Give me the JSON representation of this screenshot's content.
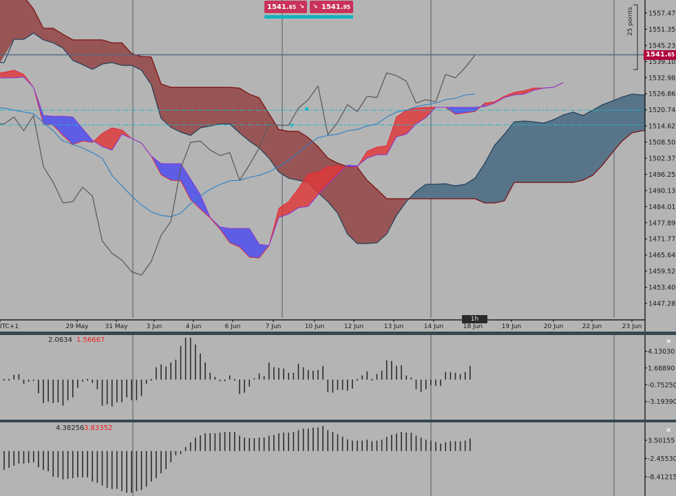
{
  "trade": {
    "sell_main": "1541.",
    "sell_sub": "65",
    "sell_icon": "arrow-down-right-icon",
    "buy_main": "1541.",
    "buy_sub": "95",
    "buy_icon": "arrow-down-right-icon"
  },
  "current_price": {
    "main": "1541.",
    "sub": "65",
    "color": "#b0003a"
  },
  "range_label": "25 points",
  "timeframe": "1h",
  "indicator1": {
    "value1": "2.0634",
    "value2": "1.56667",
    "close_icon": "close-icon"
  },
  "indicator2": {
    "value1": "4.38256",
    "value2": "3.83352",
    "close_icon": "close-icon"
  },
  "colors": {
    "background": "#b4b4b4",
    "kumo_bearish": "#985555",
    "kumo_bullish": "#587488",
    "band_red": "#e03838",
    "band_blue": "#4a4af0",
    "price_line": "#5c5c5c",
    "ma_line": "#2a7fc8",
    "level_line": "#1cb8c8"
  },
  "chart_data": [
    {
      "type": "line",
      "y_axis": {
        "ticks": [
          "1557.47",
          "1551.35",
          "1545.23",
          "1539.10",
          "1532.98",
          "1526.86",
          "1520.74",
          "1514.62",
          "1508.50",
          "1502.37",
          "1496.25",
          "1490.13",
          "1484.01",
          "1477.89",
          "1471.77",
          "1465.64",
          "1459.52",
          "1453.40",
          "1447.28"
        ],
        "range": [
          1443,
          1562
        ]
      },
      "x_axis": {
        "ticks": [
          "UTC+1",
          "29 May",
          "31 May",
          "3 Jun",
          "4 Jun",
          "6 Jun",
          "7 Jun",
          "10 Jun",
          "12 Jun",
          "13 Jun",
          "14 Jun",
          "18 Jun",
          "19 Jun",
          "20 Jun",
          "22 Jun",
          "23 Jun"
        ]
      },
      "current_price": 1541.65,
      "levels": [
        1520.6,
        1515.0
      ],
      "series": {
        "close": [
          1515.4,
          1518.0,
          1512.8,
          1518.6,
          1499.2,
          1493.2,
          1485.4,
          1485.9,
          1491.4,
          1488.0,
          1471.0,
          1466.3,
          1463.7,
          1459.3,
          1458.0,
          1463.2,
          1473.1,
          1478.4,
          1498.5,
          1508.4,
          1508.9,
          1505.5,
          1503.4,
          1504.5,
          1494.0,
          1499.8,
          1506.3,
          1515.4,
          1514.9,
          1514.9,
          1521.4,
          1524.6,
          1529.8,
          1511.3,
          1516.0,
          1522.7,
          1520.1,
          1525.9,
          1525.4,
          1534.8,
          1533.7,
          1531.6,
          1523.3,
          1524.6,
          1523.8,
          1534.2,
          1532.9,
          1536.8,
          1541.5
        ],
        "moving_average": [
          1521.4,
          1520.6,
          1519.9,
          1519.3,
          1515.9,
          1512.8,
          1508.9,
          1507.6,
          1506.3,
          1504.5,
          1502.4,
          1495.9,
          1491.9,
          1488.0,
          1484.6,
          1482.0,
          1480.7,
          1480.2,
          1481.5,
          1485.1,
          1488.0,
          1490.6,
          1492.4,
          1493.8,
          1494.0,
          1495.1,
          1495.9,
          1497.2,
          1499.2,
          1501.6,
          1504.5,
          1507.6,
          1510.2,
          1511.0,
          1511.5,
          1512.8,
          1513.3,
          1514.6,
          1515.4,
          1518.0,
          1519.9,
          1520.6,
          1521.9,
          1522.7,
          1523.3,
          1524.6,
          1525.1,
          1526.4,
          1526.7
        ],
        "senkou_a": [
          1538.7,
          1547.5,
          1547.5,
          1549.9,
          1547.3,
          1546.2,
          1544.2,
          1539.5,
          1537.9,
          1536.1,
          1538.1,
          1538.7,
          1537.6,
          1537.6,
          1535.8,
          1530.3,
          1517.5,
          1514.1,
          1512.3,
          1511.0,
          1513.9,
          1514.6,
          1515.4,
          1515.4,
          1512.0,
          1508.9,
          1506.3,
          1502.4,
          1497.2,
          1494.8,
          1494.0,
          1493.2,
          1489.3,
          1485.9,
          1481.5,
          1473.6,
          1470.0,
          1470.0,
          1470.3,
          1473.6,
          1480.7,
          1485.9,
          1489.8,
          1492.5,
          1492.5,
          1492.7,
          1491.9,
          1492.5,
          1494.8,
          1500.5,
          1507.3,
          1511.5,
          1516.2,
          1516.5,
          1516.2,
          1515.7,
          1517.0,
          1518.8,
          1519.9,
          1518.6,
          1520.6,
          1522.7,
          1524.1,
          1525.6,
          1526.7,
          1526.4,
          1526.4
        ],
        "senkou_b": [
          1567.6,
          1567.6,
          1563.7,
          1559.0,
          1551.7,
          1551.7,
          1549.4,
          1547.3,
          1547.3,
          1547.3,
          1547.3,
          1546.2,
          1546.2,
          1542.1,
          1541.0,
          1540.8,
          1530.6,
          1529.3,
          1529.3,
          1529.3,
          1529.3,
          1529.3,
          1529.3,
          1529.3,
          1529.0,
          1526.7,
          1525.3,
          1519.3,
          1513.3,
          1512.6,
          1512.6,
          1510.2,
          1506.8,
          1502.4,
          1500.5,
          1499.2,
          1499.0,
          1494.0,
          1490.6,
          1487.0,
          1487.0,
          1487.0,
          1487.0,
          1487.0,
          1487.0,
          1487.0,
          1487.0,
          1487.0,
          1487.0,
          1485.4,
          1485.4,
          1486.2,
          1493.2,
          1493.2,
          1493.2,
          1493.2,
          1493.2,
          1493.2,
          1493.2,
          1494.0,
          1495.9,
          1499.8,
          1504.5,
          1508.9,
          1512.0,
          1512.8,
          1512.8
        ],
        "band_line_purple": [
          1532.9,
          1532.9,
          1533.2,
          1529.3,
          1518.6,
          1518.3,
          1518.3,
          1518.0,
          1513.6,
          1509.2,
          1506.8,
          1505.5,
          1511.5,
          1509.9,
          1508.1,
          1503.2,
          1500.3,
          1500.3,
          1500.3,
          1494.5,
          1488.5,
          1479.9,
          1476.3,
          1475.7,
          1475.7,
          1475.7,
          1469.7,
          1469.2,
          1479.9,
          1481.2,
          1483.6,
          1484.1,
          1488.5,
          1492.4,
          1496.1,
          1499.8,
          1499.5,
          1502.4,
          1503.7,
          1503.7,
          1510.5,
          1511.5,
          1515.4,
          1517.8,
          1521.7,
          1521.7,
          1521.7,
          1521.7,
          1521.7,
          1522.0,
          1523.3,
          1525.4,
          1526.4,
          1526.7,
          1528.2,
          1529.0,
          1529.3,
          1531.1
        ],
        "band_line_red": [
          1534.8,
          1535.8,
          1534.2,
          1529.3,
          1515.4,
          1514.9,
          1511.0,
          1507.6,
          1508.9,
          1508.4,
          1511.8,
          1513.9,
          1513.1,
          1509.9,
          1508.1,
          1503.2,
          1496.1,
          1494.0,
          1493.8,
          1486.7,
          1483.1,
          1479.7,
          1475.5,
          1470.3,
          1468.7,
          1464.8,
          1464.5,
          1469.2,
          1483.3,
          1485.9,
          1490.9,
          1496.4,
          1497.2,
          1499.2,
          1499.5,
          1499.0,
          1499.0,
          1505.0,
          1506.6,
          1507.1,
          1518.0,
          1520.6,
          1521.4,
          1521.7,
          1521.7,
          1521.7,
          1519.1,
          1519.6,
          1520.1,
          1523.3,
          1523.8,
          1525.9,
          1527.4,
          1528.0,
          1529.0,
          1529.0,
          1529.3,
          1531.1
        ]
      }
    },
    {
      "type": "bar",
      "y_axis": {
        "ticks": [
          "4.13030",
          "1.68890",
          "-0.75250",
          "-3.19390"
        ]
      },
      "values": [
        0.1,
        0.1,
        0.7,
        0.8,
        -0.6,
        -0.3,
        -0.2,
        -2.0,
        -3.4,
        -3.2,
        -3.4,
        -3.3,
        -3.8,
        -3.0,
        -2.6,
        -1.2,
        -0.3,
        0.1,
        -0.5,
        -1.4,
        -3.8,
        -3.6,
        -3.9,
        -3.3,
        -3.3,
        -2.6,
        -3.0,
        -3.0,
        -2.4,
        -0.6,
        0.1,
        1.8,
        2.2,
        1.9,
        2.5,
        2.9,
        4.9,
        6.1,
        6.1,
        5.1,
        3.8,
        2.5,
        1.0,
        0.4,
        -0.1,
        -0.1,
        0.6,
        0.1,
        -2.1,
        -1.9,
        -1.0,
        0.2,
        0.9,
        0.5,
        2.5,
        1.8,
        1.7,
        1.6,
        1.0,
        1.0,
        2.3,
        1.8,
        1.4,
        1.3,
        1.4,
        2.0,
        -1.8,
        -1.9,
        -1.5,
        -1.5,
        -1.6,
        -1.3,
        0.1,
        0.6,
        1.2,
        0.1,
        0.8,
        1.3,
        2.8,
        2.7,
        2.0,
        2.1,
        0.6,
        0.3,
        -1.4,
        -1.8,
        -1.4,
        -0.8,
        -0.9,
        -0.9,
        1.1,
        1.1,
        1.0,
        0.8,
        1.1,
        2.0
      ]
    },
    {
      "type": "bar",
      "y_axis": {
        "ticks": [
          "3.50155",
          "-2.45530",
          "-8.41215"
        ]
      },
      "values": [
        -6.1,
        -5.5,
        -4.8,
        -4.1,
        -4.1,
        -3.9,
        -3.7,
        -5.3,
        -6.2,
        -6.6,
        -8.4,
        -8.6,
        -9.3,
        -9.1,
        -8.9,
        -8.6,
        -8.6,
        -8.6,
        -10.0,
        -10.4,
        -11.3,
        -12.0,
        -12.4,
        -12.4,
        -13.1,
        -13.6,
        -13.6,
        -13.1,
        -12.7,
        -11.6,
        -10.0,
        -8.9,
        -7.3,
        -5.9,
        -3.7,
        -1.4,
        -1.0,
        1.3,
        2.8,
        4.4,
        5.1,
        5.8,
        5.8,
        5.8,
        6.0,
        6.2,
        6.2,
        6.2,
        5.0,
        4.4,
        4.2,
        4.2,
        4.4,
        4.4,
        5.0,
        5.3,
        5.8,
        6.0,
        6.0,
        6.2,
        6.8,
        7.3,
        7.3,
        7.6,
        7.7,
        8.2,
        6.8,
        6.2,
        5.5,
        4.7,
        3.8,
        3.4,
        3.4,
        3.4,
        3.7,
        3.2,
        3.4,
        3.7,
        4.6,
        5.3,
        5.7,
        6.2,
        6.0,
        6.0,
        5.0,
        4.4,
        3.7,
        3.4,
        2.9,
        2.4,
        2.9,
        3.2,
        3.2,
        3.2,
        3.4,
        4.1
      ]
    }
  ]
}
